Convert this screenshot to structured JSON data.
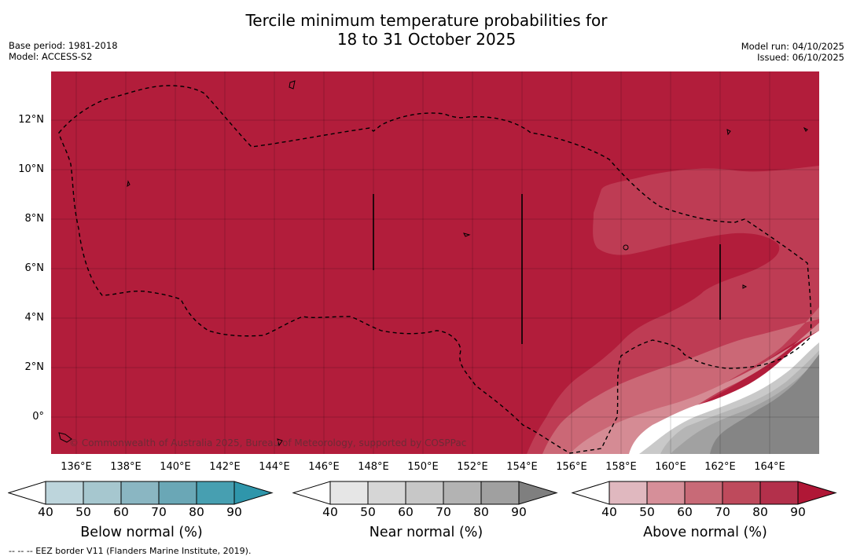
{
  "title": {
    "line1": "Tercile minimum temperature probabilities for",
    "line2": "18 to 31 October 2025"
  },
  "meta": {
    "base_period": "Base period: 1981-2018",
    "model": "Model: ACCESS-S2",
    "model_run": "Model run: 04/10/2025",
    "issued": "Issued: 06/10/2025"
  },
  "map": {
    "lat_labels": [
      "12°N",
      "10°N",
      "8°N",
      "6°N",
      "4°N",
      "2°N",
      "0°"
    ],
    "lon_labels": [
      "136°E",
      "138°E",
      "140°E",
      "142°E",
      "144°E",
      "146°E",
      "148°E",
      "150°E",
      "152°E",
      "154°E",
      "156°E",
      "158°E",
      "160°E",
      "162°E",
      "164°E"
    ],
    "copyright": "© Commonwealth of Australia 2025, Bureau of Meteorology, supported by COSPPac",
    "colors": {
      "above_90": "#b21d3b",
      "above_80": "#be3c54",
      "above_70": "#cb6876",
      "above_60": "#d58b94",
      "near_60": "#c9c9c9",
      "near_70": "#b5b5b5",
      "near_80": "#a1a1a1",
      "near_90": "#858585"
    }
  },
  "colorbars": [
    {
      "label": "Below normal (%)",
      "ticks": [
        "40",
        "50",
        "60",
        "70",
        "80",
        "90"
      ],
      "colors": [
        "#ffffff",
        "#bdd5dc",
        "#a6c7cf",
        "#8ab6c2",
        "#6aa7b6",
        "#479fb1",
        "#2f96ab"
      ]
    },
    {
      "label": "Near normal (%)",
      "ticks": [
        "40",
        "50",
        "60",
        "70",
        "80",
        "90"
      ],
      "colors": [
        "#ffffff",
        "#e6e6e6",
        "#d6d6d6",
        "#c7c7c7",
        "#b3b3b3",
        "#a0a0a0",
        "#7f7f7f"
      ]
    },
    {
      "label": "Above normal (%)",
      "ticks": [
        "40",
        "50",
        "60",
        "70",
        "80",
        "90"
      ],
      "colors": [
        "#ffffff",
        "#e0b8bf",
        "#d68f99",
        "#c86a77",
        "#be4a5c",
        "#b3304b",
        "#b01736"
      ]
    }
  ],
  "footer": "--  --  -- EEZ border V11 (Flanders Marine Institute, 2019)."
}
